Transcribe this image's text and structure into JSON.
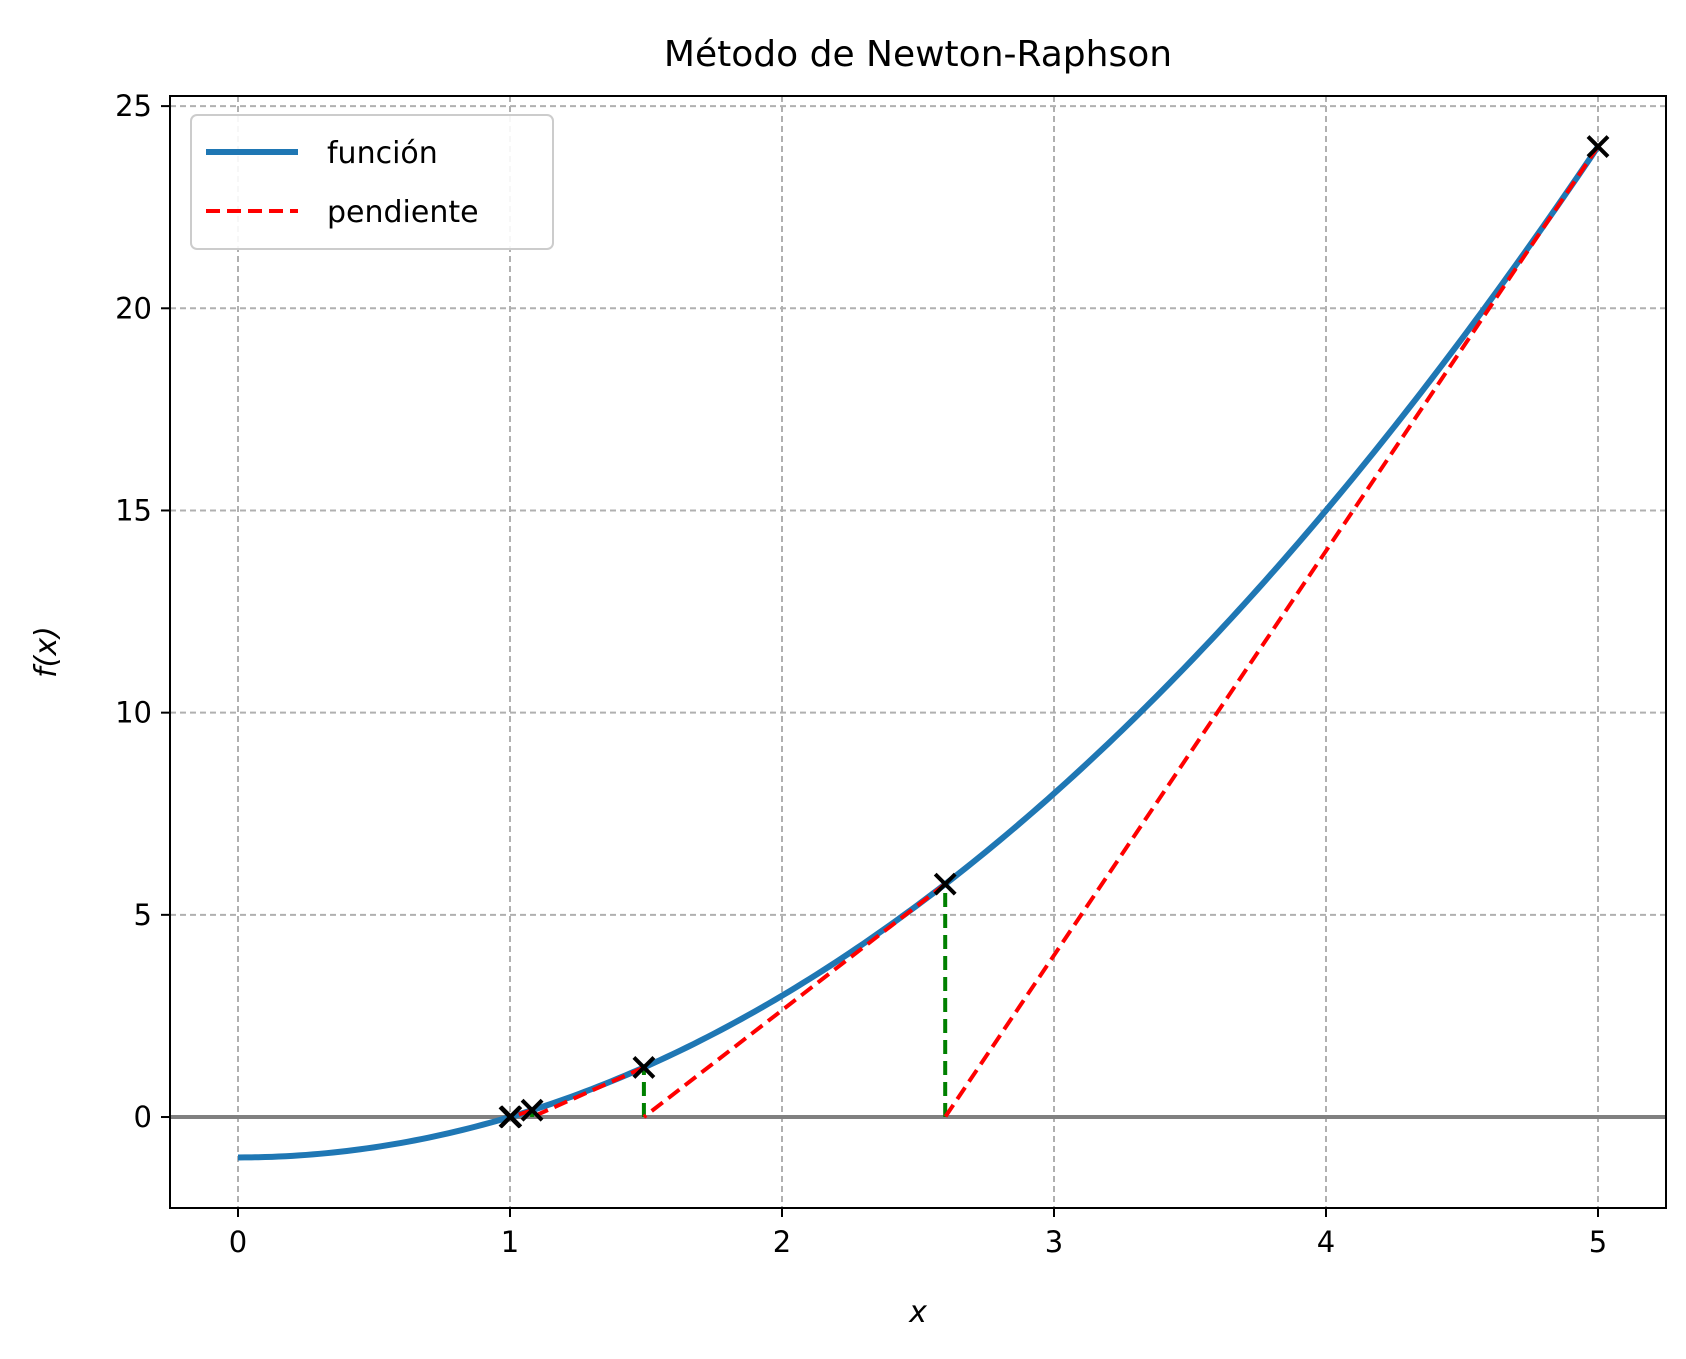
{
  "chart_data": {
    "type": "line",
    "title": "Método de Newton-Raphson",
    "xlabel": "x",
    "ylabel": "f(x)",
    "xlim": [
      -0.25,
      5.25
    ],
    "ylim": [
      -2.25,
      25.25
    ],
    "xticks": [
      0,
      1,
      2,
      3,
      4,
      5
    ],
    "yticks": [
      0,
      5,
      10,
      15,
      20,
      25
    ],
    "grid": true,
    "legend_position": "top-left",
    "legend": [
      {
        "label": "función",
        "style": "solid",
        "color": "#1f77b4"
      },
      {
        "label": "pendiente",
        "style": "dashed",
        "color": "#ff0000"
      }
    ],
    "function": {
      "name": "función",
      "expression": "x^2 - 1",
      "x_range": [
        0,
        5
      ],
      "color": "#1f77b4"
    },
    "baseline": {
      "y": 0,
      "color": "#808080"
    },
    "iterations": [
      {
        "x": 5.0,
        "fx": 24.0,
        "next_x": 2.6
      },
      {
        "x": 2.6,
        "fx": 5.76,
        "next_x": 1.4923
      },
      {
        "x": 1.4923,
        "fx": 1.227,
        "next_x": 1.0812
      },
      {
        "x": 1.0812,
        "fx": 0.169,
        "next_x": 1.003
      },
      {
        "x": 1.003,
        "fx": 0.0061,
        "next_x": 1.0
      }
    ],
    "iterate_points": [
      {
        "x": 5.0,
        "y": 24.0
      },
      {
        "x": 2.6,
        "y": 5.76
      },
      {
        "x": 1.4923,
        "y": 1.227
      },
      {
        "x": 1.0812,
        "y": 0.169
      },
      {
        "x": 1.003,
        "y": 0.0061
      },
      {
        "x": 1.0,
        "y": 0.0
      }
    ],
    "colors": {
      "function": "#1f77b4",
      "slope": "#ff0000",
      "vertical": "#008000",
      "marker": "#000000",
      "grid": "#b0b0b0",
      "baseline": "#808080"
    }
  }
}
